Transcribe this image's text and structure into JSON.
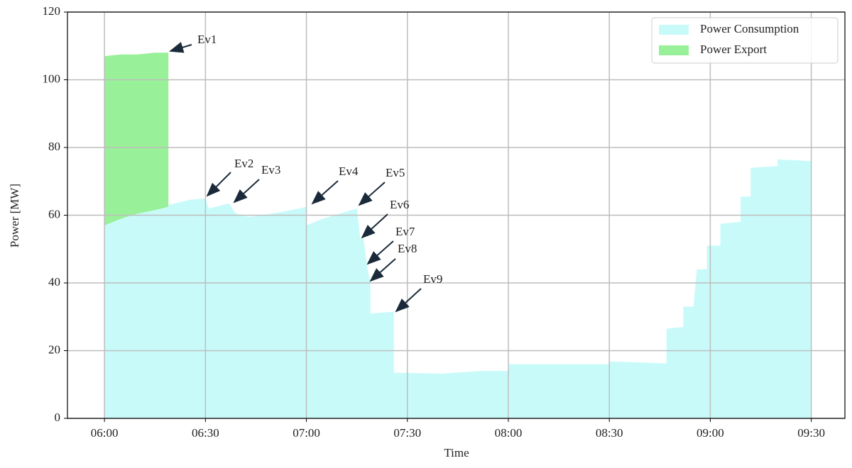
{
  "chart_data": {
    "type": "area",
    "stacked": true,
    "xlabel": "Time",
    "ylabel": "Power [MW]",
    "x": [
      "06:00",
      "06:05",
      "06:10",
      "06:15",
      "06:19",
      "06:19",
      "06:25",
      "06:30",
      "06:31",
      "06:37",
      "06:39",
      "06:43",
      "06:50",
      "06:58",
      "07:00",
      "07:00",
      "07:05",
      "07:10",
      "07:15",
      "07:16",
      "07:17",
      "07:18",
      "07:19",
      "07:19",
      "07:26",
      "07:26",
      "07:40",
      "07:52",
      "08:00",
      "08:00",
      "08:15",
      "08:30",
      "08:30",
      "08:40",
      "08:47",
      "08:47",
      "08:52",
      "08:52",
      "08:55",
      "08:56",
      "08:59",
      "08:59",
      "09:03",
      "09:03",
      "09:09",
      "09:09",
      "09:12",
      "09:12",
      "09:20",
      "09:20",
      "09:30"
    ],
    "series": [
      {
        "name": "Power Consumption",
        "color": "#c8fafa",
        "values": [
          57,
          59,
          60.5,
          61.5,
          62.5,
          63,
          64.5,
          65,
          62,
          63.5,
          60.5,
          59.5,
          60.5,
          62,
          62.5,
          57,
          59,
          60.5,
          62,
          53,
          53,
          45,
          40,
          31,
          31.5,
          13.5,
          13.2,
          14,
          14,
          16,
          16,
          16,
          16.8,
          16.5,
          16.2,
          26.5,
          27,
          33,
          33,
          44,
          44,
          51,
          51,
          57.5,
          58,
          65.5,
          65.5,
          74,
          74.5,
          76.5,
          76
        ]
      },
      {
        "name": "Power Export",
        "color": "#98f098",
        "values": [
          50,
          48.5,
          47,
          46.5,
          45.5,
          null,
          null,
          null,
          null,
          null,
          null,
          null,
          null,
          null,
          null,
          null,
          null,
          null,
          null,
          null,
          null,
          null,
          null,
          null,
          null,
          null,
          null,
          null,
          null,
          null,
          null,
          null,
          null,
          null,
          null,
          null,
          null,
          null,
          null,
          null,
          null,
          null,
          null,
          null,
          null,
          null,
          null,
          null,
          null,
          null,
          null
        ]
      }
    ],
    "annotations": [
      "Ev1",
      "Ev2",
      "Ev3",
      "Ev4",
      "Ev5",
      "Ev6",
      "Ev7",
      "Ev8",
      "Ev9"
    ],
    "xlim": [
      "05:49",
      "09:40"
    ],
    "xticks": [
      "06:00",
      "06:30",
      "07:00",
      "07:30",
      "08:00",
      "08:30",
      "09:00",
      "09:30"
    ],
    "ylim": [
      0,
      120
    ],
    "yticks": [
      0,
      20,
      40,
      60,
      80,
      100,
      120
    ],
    "grid": true,
    "legend": "upper right"
  }
}
